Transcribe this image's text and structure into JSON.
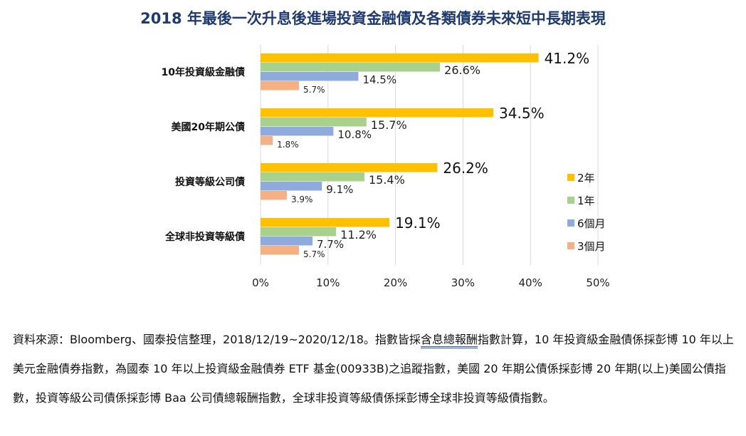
{
  "chart_data": {
    "type": "bar",
    "orientation": "horizontal",
    "title": "2018 年最後一次升息後進場投資金融債及各類債券未來短中長期表現",
    "categories": [
      "10年投資級金融債",
      "美國20年期公債",
      "投資等級公司債",
      "全球非投資等級債"
    ],
    "series": [
      {
        "name": "2年",
        "color": "#FFC000",
        "values": [
          41.2,
          34.5,
          26.2,
          19.1
        ],
        "labels": [
          "41.2%",
          "34.5%",
          "26.2%",
          "19.1%"
        ]
      },
      {
        "name": "1年",
        "color": "#A9D18E",
        "values": [
          26.6,
          15.7,
          15.4,
          11.2
        ],
        "labels": [
          "26.6%",
          "15.7%",
          "15.4%",
          "11.2%"
        ]
      },
      {
        "name": "6個月",
        "color": "#8FAADC",
        "values": [
          14.5,
          10.8,
          9.1,
          7.7
        ],
        "labels": [
          "14.5%",
          "10.8%",
          "9.1%",
          "7.7%"
        ]
      },
      {
        "name": "3個月",
        "color": "#F4B183",
        "values": [
          5.7,
          1.8,
          3.9,
          5.7
        ],
        "labels": [
          "5.7%",
          "1.8%",
          "3.9%",
          "5.7%"
        ]
      }
    ],
    "xlim": [
      0,
      50
    ],
    "xticks": [
      "0%",
      "10%",
      "20%",
      "30%",
      "40%",
      "50%"
    ],
    "grid": true,
    "legend": "right"
  },
  "footnote": {
    "part1": "資料來源：Bloomberg、國泰投信整理，2018/12/19~2020/12/18。指數皆採",
    "link": "含息總報酬",
    "part2": "指數計算，10 年投資級金融債係採彭博 10 年以上美元金融債券指數，為國泰 10 年以上投資級金融債券 ETF 基金(00933B)之追蹤指數，美國 20 年期公債係採彭博 20 年期(以上)美國公債指數，投資等級公司債係採彭博 Baa 公司債總報酬指數，全球非投資等級債係採彭博全球非投資等級債指數。"
  }
}
